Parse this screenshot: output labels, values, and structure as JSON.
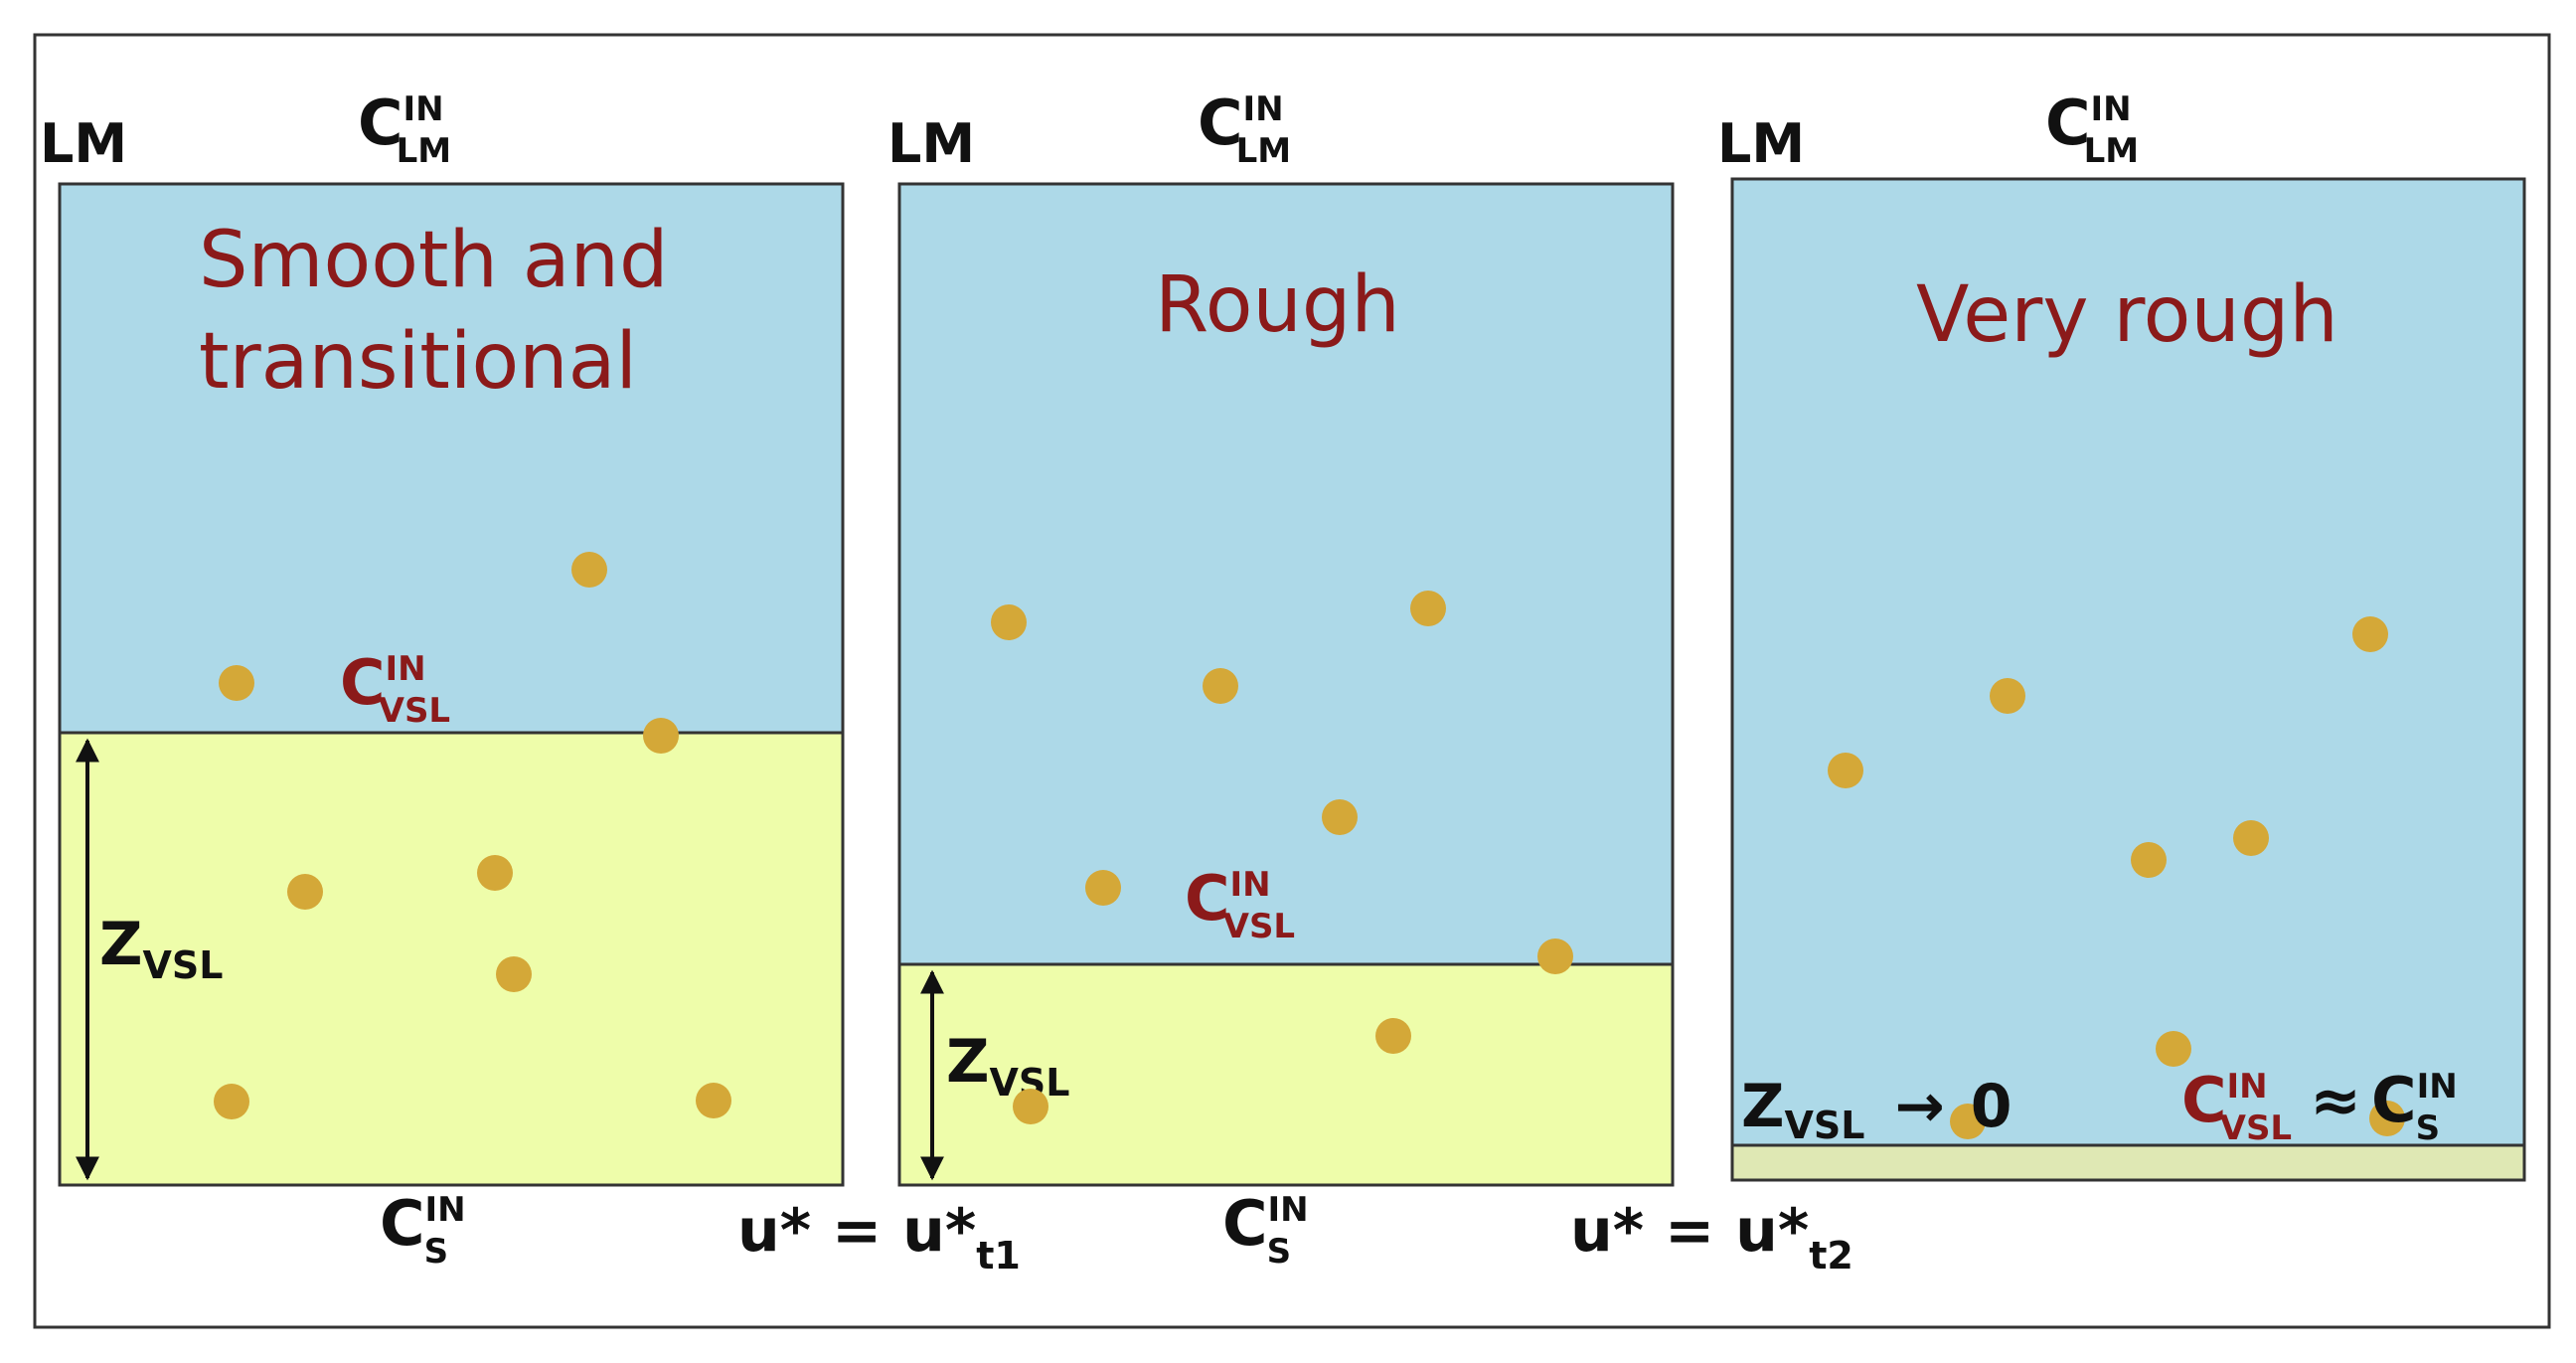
{
  "colors": {
    "water": "#add9e8",
    "vsl": "#eefdaa",
    "vsl_thin": "#dfe8b4",
    "particle": "#d4a838",
    "label_red": "#8b1a1a",
    "text": "#111111"
  },
  "panels": [
    {
      "title_line1": "Smooth and",
      "title_line2": "transitional",
      "lm_label": "LM",
      "c_lm": {
        "base": "C",
        "sup": "IN",
        "sub": "LM"
      },
      "c_vsl": {
        "base": "C",
        "sup": "IN",
        "sub": "VSL"
      },
      "c_s": {
        "base": "C",
        "sup": "IN",
        "sub": "S"
      },
      "z_vsl": {
        "base": "Z",
        "sub": "VSL"
      }
    },
    {
      "title_line1": "Rough",
      "lm_label": "LM",
      "c_lm": {
        "base": "C",
        "sup": "IN",
        "sub": "LM"
      },
      "c_vsl": {
        "base": "C",
        "sup": "IN",
        "sub": "VSL"
      },
      "c_s": {
        "base": "C",
        "sup": "IN",
        "sub": "S"
      },
      "z_vsl": {
        "base": "Z",
        "sub": "VSL"
      }
    },
    {
      "title_line1": "Very rough",
      "lm_label": "LM",
      "c_lm": {
        "base": "C",
        "sup": "IN",
        "sub": "LM"
      },
      "z_vsl_limit": {
        "base": "Z",
        "sub": "VSL",
        "arrow": "→",
        "value": "0"
      },
      "c_vsl_approx": {
        "base": "C",
        "sup": "IN",
        "sub": "VSL",
        "approx": "≈",
        "base2": "C",
        "sup2": "IN",
        "sub2": "S"
      }
    }
  ],
  "thresholds": [
    {
      "lhs": "u* = u*",
      "sub": "t1"
    },
    {
      "lhs": "u* = u*",
      "sub": "t2"
    }
  ]
}
